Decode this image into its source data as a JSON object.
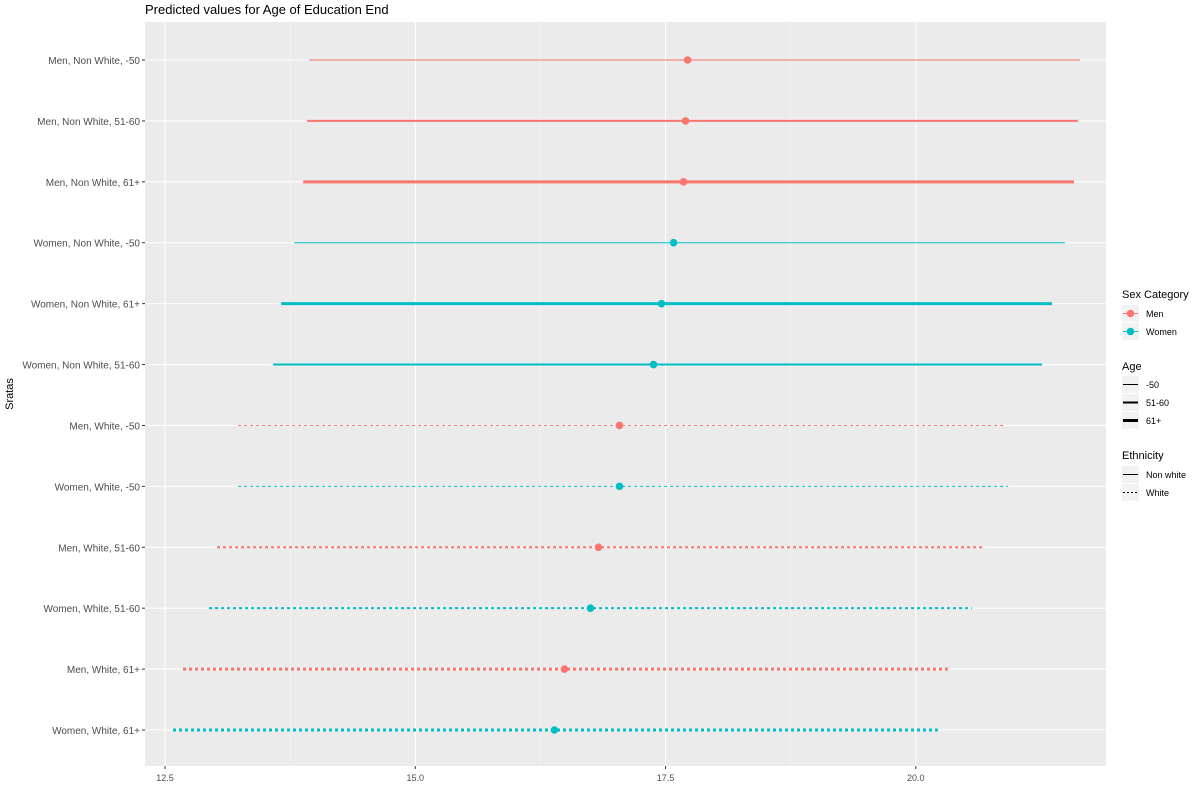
{
  "chart_data": {
    "type": "errorbar",
    "title": "Predicted values for Age of Education End",
    "xlabel": "",
    "ylabel": "Sratas",
    "xlim": [
      12.3,
      21.9
    ],
    "xticks": [
      12.5,
      15.0,
      17.5,
      20.0
    ],
    "xtick_labels": [
      "12.5",
      "15.0",
      "17.5",
      "20.0"
    ],
    "grid": true,
    "legend_position": "right",
    "colors": {
      "Men": "#F8766D",
      "Women": "#00BFC4",
      "panel": "#EBEBEB",
      "grid": "#FFFFFF"
    },
    "rows": [
      {
        "label": "Men, Non White, -50",
        "sex": "Men",
        "age": "-50",
        "ethnicity": "Non white",
        "estimate": 17.72,
        "lower": 13.94,
        "upper": 21.64
      },
      {
        "label": "Men, Non White, 51-60",
        "sex": "Men",
        "age": "51-60",
        "ethnicity": "Non white",
        "estimate": 17.7,
        "lower": 13.92,
        "upper": 21.62
      },
      {
        "label": "Men, Non White, 61+",
        "sex": "Men",
        "age": "61+",
        "ethnicity": "Non white",
        "estimate": 17.68,
        "lower": 13.88,
        "upper": 21.58
      },
      {
        "label": "Women, Non White, -50",
        "sex": "Women",
        "age": "-50",
        "ethnicity": "Non white",
        "estimate": 17.58,
        "lower": 13.79,
        "upper": 21.49
      },
      {
        "label": "Women, Non White, 61+",
        "sex": "Women",
        "age": "61+",
        "ethnicity": "Non white",
        "estimate": 17.46,
        "lower": 13.66,
        "upper": 21.36
      },
      {
        "label": "Women, Non White, 51-60",
        "sex": "Women",
        "age": "51-60",
        "ethnicity": "Non white",
        "estimate": 17.38,
        "lower": 13.58,
        "upper": 21.26
      },
      {
        "label": "Men, White, -50",
        "sex": "Men",
        "age": "-50",
        "ethnicity": "White",
        "estimate": 17.04,
        "lower": 13.23,
        "upper": 20.89
      },
      {
        "label": "Women, White, -50",
        "sex": "Women",
        "age": "-50",
        "ethnicity": "White",
        "estimate": 17.04,
        "lower": 13.23,
        "upper": 20.92
      },
      {
        "label": "Men, White, 51-60",
        "sex": "Men",
        "age": "51-60",
        "ethnicity": "White",
        "estimate": 16.83,
        "lower": 13.02,
        "upper": 20.68
      },
      {
        "label": "Women, White, 51-60",
        "sex": "Women",
        "age": "51-60",
        "ethnicity": "White",
        "estimate": 16.75,
        "lower": 12.94,
        "upper": 20.56
      },
      {
        "label": "Men, White, 61+",
        "sex": "Men",
        "age": "61+",
        "ethnicity": "White",
        "estimate": 16.49,
        "lower": 12.68,
        "upper": 20.32
      },
      {
        "label": "Women, White, 61+",
        "sex": "Women",
        "age": "61+",
        "ethnicity": "White",
        "estimate": 16.39,
        "lower": 12.58,
        "upper": 20.22
      }
    ],
    "legend": {
      "sex": {
        "title": "Sex Category",
        "items": [
          "Men",
          "Women"
        ]
      },
      "age": {
        "title": "Age",
        "items": [
          "-50",
          "51-60",
          "61+"
        ]
      },
      "ethnicity": {
        "title": "Ethnicity",
        "items": [
          "Non white",
          "White"
        ]
      }
    }
  }
}
